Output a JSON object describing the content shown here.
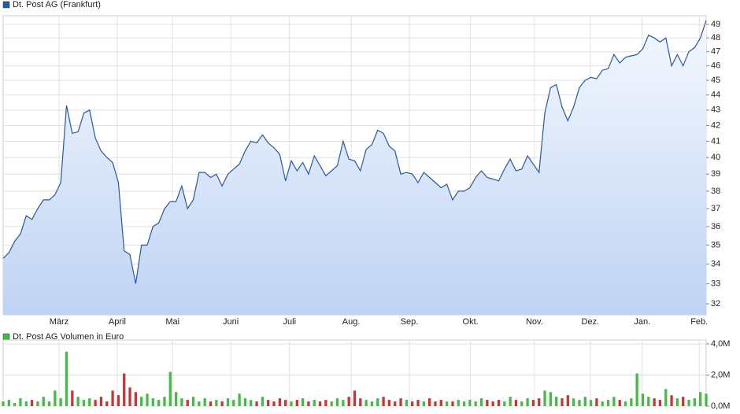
{
  "chart_data": [
    {
      "type": "area",
      "title": "Dt. Post AG (Frankfurt)",
      "log_scale": true,
      "grid": true,
      "color": "#2458a8",
      "fill_top": "#f4f8fe",
      "fill_bottom": "#bfd3f3",
      "xlim": [
        0,
        122
      ],
      "ylim": [
        31.47,
        49.65
      ],
      "xticks": [
        {
          "value": 9.7,
          "label": "März"
        },
        {
          "value": 19.8,
          "label": "April"
        },
        {
          "value": 29.4,
          "label": "Mai"
        },
        {
          "value": 39.5,
          "label": "Juni"
        },
        {
          "value": 49.7,
          "label": "Juli"
        },
        {
          "value": 60.4,
          "label": "Aug."
        },
        {
          "value": 70.5,
          "label": "Sep."
        },
        {
          "value": 81.1,
          "label": "Okt."
        },
        {
          "value": 92.2,
          "label": "Nov."
        },
        {
          "value": 101.9,
          "label": "Dez."
        },
        {
          "value": 110.9,
          "label": "Jan."
        },
        {
          "value": 120.8,
          "label": "Feb."
        }
      ],
      "yticks": [
        32,
        33,
        34,
        35,
        36,
        37,
        38,
        39,
        40,
        41,
        42,
        43,
        44,
        45,
        46,
        47,
        48,
        49
      ],
      "values": [
        34.3,
        34.6,
        35.2,
        35.6,
        36.6,
        36.4,
        37.0,
        37.5,
        37.5,
        37.8,
        38.5,
        43.3,
        41.5,
        41.6,
        42.8,
        43.0,
        41.2,
        40.4,
        40.0,
        39.7,
        38.5,
        34.7,
        34.5,
        33.0,
        35.0,
        35.0,
        36.0,
        36.2,
        37.0,
        37.4,
        37.4,
        38.3,
        37.0,
        37.5,
        39.1,
        39.1,
        38.8,
        39.0,
        38.3,
        39.0,
        39.3,
        39.6,
        40.4,
        41.0,
        40.9,
        41.4,
        40.9,
        40.6,
        40.2,
        38.6,
        39.8,
        39.2,
        39.7,
        39.0,
        40.1,
        39.5,
        38.9,
        39.2,
        39.5,
        41.0,
        39.9,
        39.8,
        39.2,
        40.5,
        40.8,
        41.7,
        41.5,
        40.7,
        40.4,
        39.0,
        39.1,
        39.0,
        38.5,
        39.1,
        38.8,
        38.5,
        38.2,
        38.4,
        37.5,
        38.0,
        38.0,
        38.2,
        38.8,
        39.2,
        38.8,
        38.7,
        38.6,
        39.3,
        39.9,
        39.2,
        39.3,
        40.1,
        39.6,
        39.1,
        42.8,
        44.5,
        44.7,
        43.2,
        42.3,
        43.2,
        44.5,
        45.0,
        45.2,
        45.1,
        45.7,
        45.8,
        46.8,
        46.2,
        46.6,
        46.7,
        46.8,
        47.2,
        48.2,
        48.0,
        47.7,
        48.0,
        46.0,
        46.8,
        46.0,
        47.0,
        47.3,
        48.0,
        49.3
      ]
    },
    {
      "type": "bar",
      "title": "Dt. Post AG Volumen in Euro",
      "grid": true,
      "color": "#44bb44",
      "up_color": "#44bb44",
      "down_color": "#cc3333",
      "xlim": [
        0,
        122
      ],
      "ylim": [
        0,
        4.25
      ],
      "yticks": [
        {
          "value": 0,
          "label": "0,0M"
        },
        {
          "value": 2,
          "label": "2,0M"
        },
        {
          "value": 4,
          "label": "4,0M"
        }
      ],
      "values": [
        0.3,
        0.4,
        0.2,
        0.5,
        0.3,
        0.4,
        0.3,
        0.6,
        0.3,
        1.0,
        0.5,
        3.5,
        1.0,
        0.6,
        0.4,
        0.5,
        0.4,
        0.6,
        0.3,
        1.0,
        0.7,
        2.1,
        1.2,
        0.9,
        0.6,
        0.8,
        0.5,
        0.4,
        0.6,
        2.2,
        0.9,
        0.5,
        0.4,
        0.6,
        0.3,
        0.5,
        0.3,
        0.4,
        0.3,
        0.5,
        0.4,
        0.8,
        0.5,
        0.4,
        0.3,
        0.6,
        0.4,
        0.3,
        0.5,
        0.4,
        0.3,
        0.4,
        0.5,
        0.3,
        0.4,
        0.3,
        0.4,
        0.3,
        0.5,
        0.4,
        0.6,
        1.0,
        0.5,
        0.4,
        0.3,
        0.5,
        0.6,
        0.4,
        0.3,
        0.5,
        0.4,
        0.3,
        0.4,
        0.3,
        0.5,
        0.3,
        0.4,
        0.3,
        0.3,
        0.4,
        0.3,
        0.4,
        0.3,
        0.5,
        0.4,
        0.3,
        0.4,
        0.3,
        0.6,
        0.4,
        0.3,
        0.5,
        0.4,
        0.5,
        1.0,
        0.9,
        0.6,
        0.5,
        0.7,
        0.5,
        0.4,
        0.6,
        0.4,
        0.5,
        0.3,
        0.4,
        0.6,
        0.4,
        0.3,
        0.5,
        2.1,
        0.8,
        0.6,
        0.5,
        0.4,
        1.1,
        0.7,
        0.5,
        0.6,
        0.4,
        0.5,
        0.9,
        0.8
      ]
    }
  ]
}
